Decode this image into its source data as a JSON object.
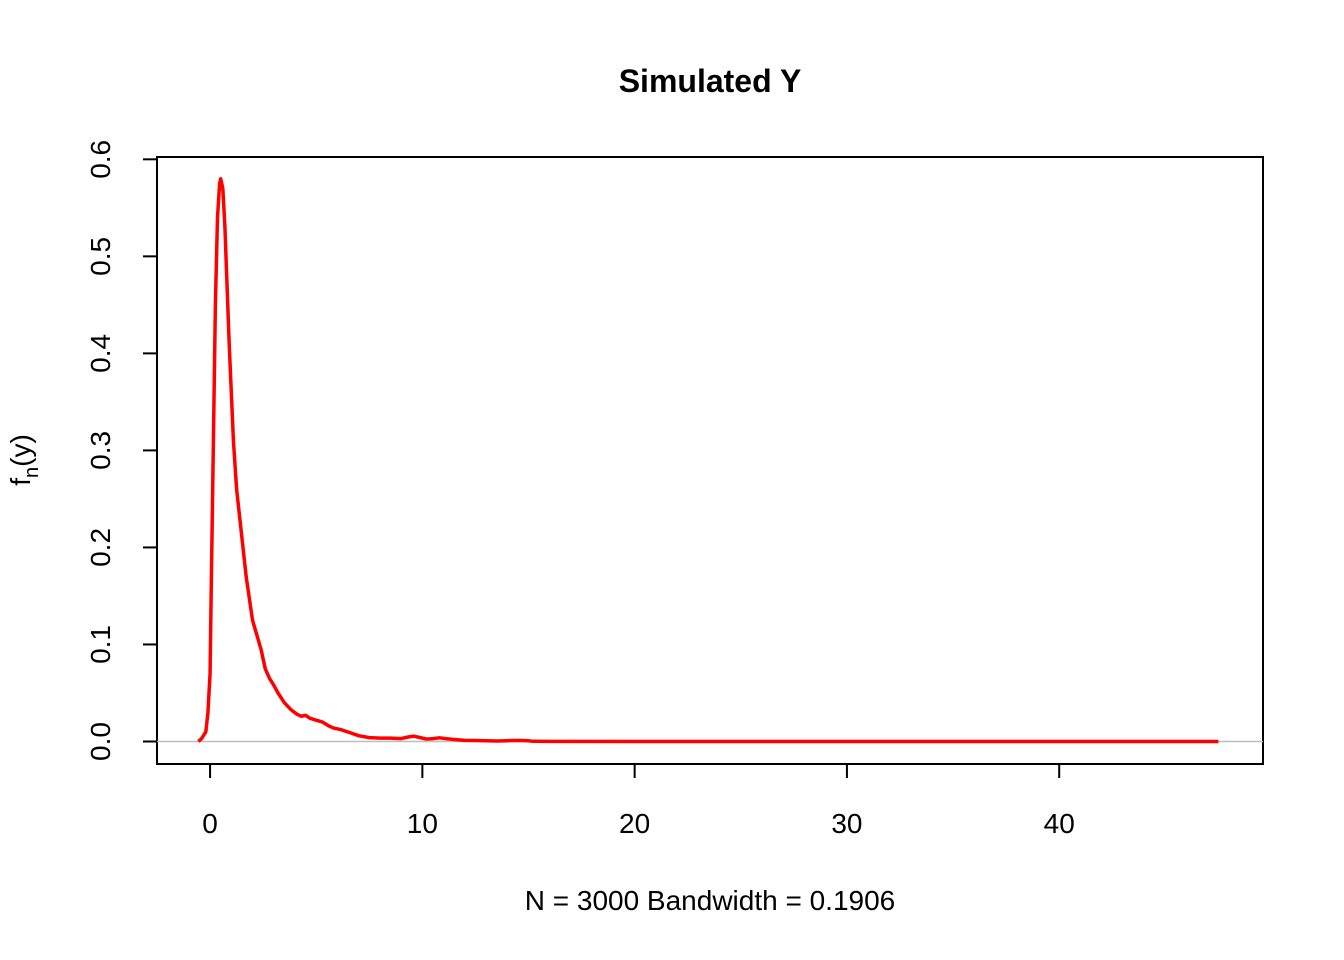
{
  "chart_data": {
    "type": "line",
    "title": "Simulated Y",
    "xlabel": "N = 3000   Bandwidth = 0.1906",
    "ylabel_main": "f",
    "ylabel_sub": "n",
    "ylabel_tail": "(y)",
    "xlim": [
      -2.5,
      49.6
    ],
    "ylim": [
      -0.0232,
      0.6024
    ],
    "x_ticks": [
      0,
      10,
      20,
      30,
      40
    ],
    "x_tick_labels": [
      "0",
      "10",
      "20",
      "30",
      "40"
    ],
    "y_ticks": [
      0.0,
      0.1,
      0.2,
      0.3,
      0.4,
      0.5,
      0.6
    ],
    "y_tick_labels": [
      "0.0",
      "0.1",
      "0.2",
      "0.3",
      "0.4",
      "0.5",
      "0.6"
    ],
    "zero_line": {
      "y": 0,
      "color": "#bebebe"
    },
    "series": [
      {
        "color": "#ff0000",
        "x": [
          -0.55,
          -0.4,
          -0.2,
          -0.1,
          0.0,
          0.05,
          0.15,
          0.25,
          0.35,
          0.45,
          0.5,
          0.6,
          0.7,
          0.8,
          0.9,
          1.0,
          1.1,
          1.25,
          1.4,
          1.55,
          1.7,
          1.9,
          2.0,
          2.2,
          2.4,
          2.6,
          2.8,
          3.0,
          3.2,
          3.5,
          3.8,
          4.1,
          4.3,
          4.5,
          4.7,
          5.0,
          5.3,
          5.6,
          5.8,
          6.2,
          6.6,
          7.0,
          7.5,
          8.0,
          8.5,
          9.0,
          9.3,
          9.6,
          9.9,
          10.2,
          10.5,
          10.8,
          11.1,
          11.5,
          12.0,
          12.5,
          13.0,
          13.5,
          14.0,
          14.5,
          15.0,
          15.2,
          16,
          20,
          25,
          30,
          35,
          40,
          45,
          47.5
        ],
        "y": [
          0.0,
          0.003,
          0.01,
          0.03,
          0.07,
          0.15,
          0.3,
          0.45,
          0.54,
          0.575,
          0.58,
          0.57,
          0.53,
          0.47,
          0.41,
          0.36,
          0.31,
          0.26,
          0.23,
          0.2,
          0.17,
          0.14,
          0.125,
          0.11,
          0.095,
          0.075,
          0.065,
          0.058,
          0.05,
          0.04,
          0.033,
          0.028,
          0.026,
          0.027,
          0.024,
          0.022,
          0.02,
          0.016,
          0.014,
          0.012,
          0.009,
          0.006,
          0.004,
          0.0035,
          0.0035,
          0.003,
          0.0045,
          0.0055,
          0.004,
          0.0025,
          0.003,
          0.0038,
          0.003,
          0.002,
          0.0012,
          0.001,
          0.0008,
          0.0005,
          0.0008,
          0.0012,
          0.0008,
          0.0002,
          0.0001,
          0.0,
          0.0,
          0.0,
          0.0,
          0.0,
          0.0,
          0.0
        ]
      }
    ]
  }
}
